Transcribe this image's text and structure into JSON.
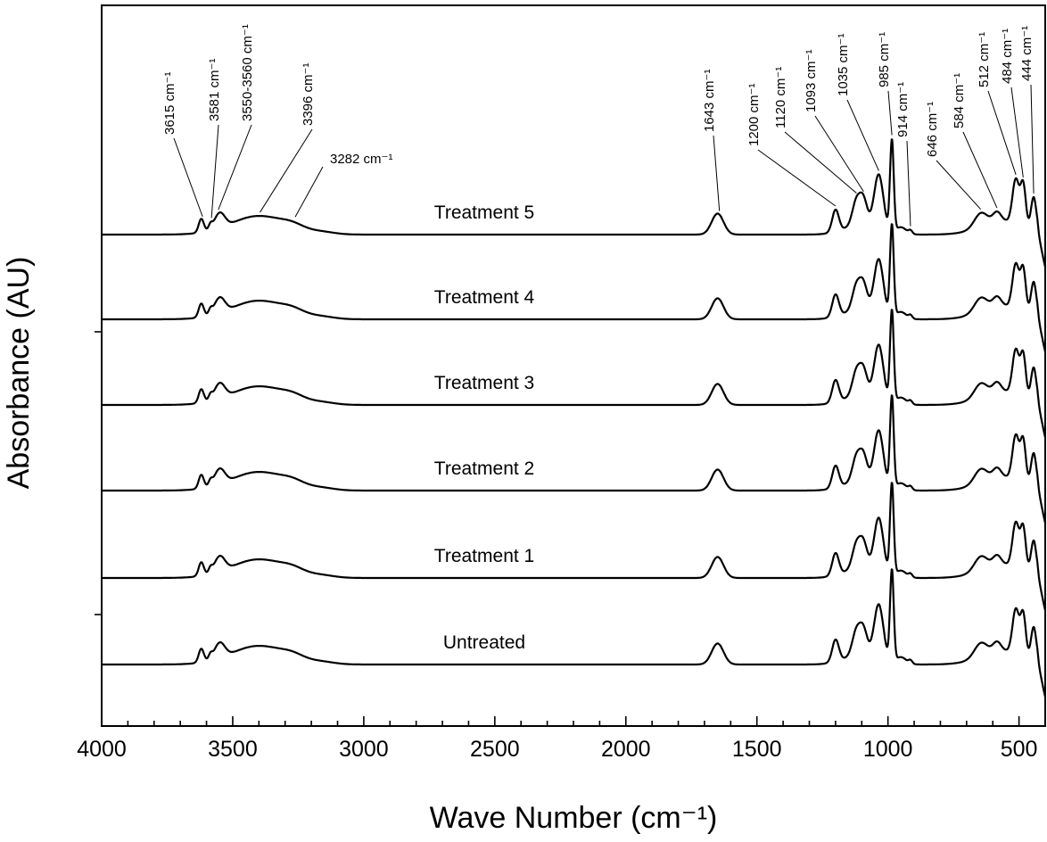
{
  "chart_data": {
    "type": "line",
    "title": "",
    "xlabel": "Wave Number (cm⁻¹)",
    "ylabel": "Absorbance (AU)",
    "xlim": [
      4000,
      400
    ],
    "x_reversed": true,
    "x_ticks": [
      4000,
      3500,
      3000,
      2500,
      2000,
      1500,
      1000,
      500
    ],
    "grid": false,
    "series": [
      {
        "name": "Treatment 5",
        "offset": 5
      },
      {
        "name": "Treatment 4",
        "offset": 4
      },
      {
        "name": "Treatment 3",
        "offset": 3
      },
      {
        "name": "Treatment 2",
        "offset": 2
      },
      {
        "name": "Treatment 1",
        "offset": 1
      },
      {
        "name": "Untreated",
        "offset": 0
      }
    ],
    "annotations": [
      {
        "text": "3615 cm⁻¹",
        "x": 3615
      },
      {
        "text": "3581 cm⁻¹",
        "x": 3581
      },
      {
        "text": "3550-3560 cm⁻¹",
        "x": 3555
      },
      {
        "text": "3396 cm⁻¹",
        "x": 3396
      },
      {
        "text": "3282 cm⁻¹",
        "x": 3282
      },
      {
        "text": "1643 cm⁻¹",
        "x": 1643
      },
      {
        "text": "1200 cm⁻¹",
        "x": 1200
      },
      {
        "text": "1120 cm⁻¹",
        "x": 1120
      },
      {
        "text": "1093 cm⁻¹",
        "x": 1093
      },
      {
        "text": "1035 cm⁻¹",
        "x": 1035
      },
      {
        "text": "985 cm⁻¹",
        "x": 985
      },
      {
        "text": "914 cm⁻¹",
        "x": 914
      },
      {
        "text": "646 cm⁻¹",
        "x": 646
      },
      {
        "text": "584 cm⁻¹",
        "x": 584
      },
      {
        "text": "512 cm⁻¹",
        "x": 512
      },
      {
        "text": "484 cm⁻¹",
        "x": 484
      },
      {
        "text": "444 cm⁻¹",
        "x": 444
      }
    ]
  }
}
